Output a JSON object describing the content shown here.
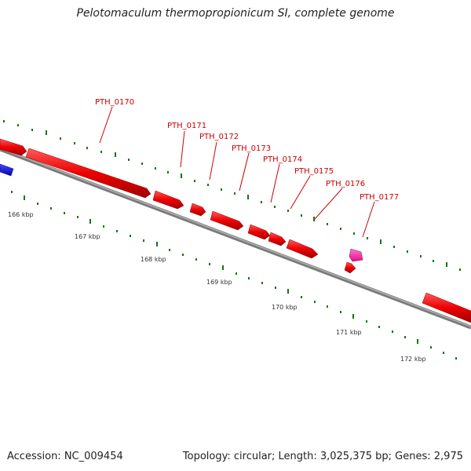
{
  "title": "Pelotomaculum thermopropionicum SI, complete genome",
  "footer": {
    "accession": "Accession: NC_009454",
    "topology": "Topology: circular; Length: 3,025,375 bp; Genes: 2,975"
  },
  "colors": {
    "gene": "#ee0000",
    "gene_highlight": "#ff3399",
    "gene_blue": "#0000ee",
    "backbone": "#808080",
    "tick": "#117711",
    "label": "#cc0000"
  },
  "scale_labels": [
    "166 kbp",
    "167 kbp",
    "168 kbp",
    "169 kbp",
    "170 kbp",
    "171 kbp",
    "172 kbp"
  ],
  "gene_labels": [
    "PTH_0170",
    "PTH_0171",
    "PTH_0172",
    "PTH_0173",
    "PTH_0174",
    "PTH_0175",
    "PTH_0176",
    "PTH_0177"
  ]
}
